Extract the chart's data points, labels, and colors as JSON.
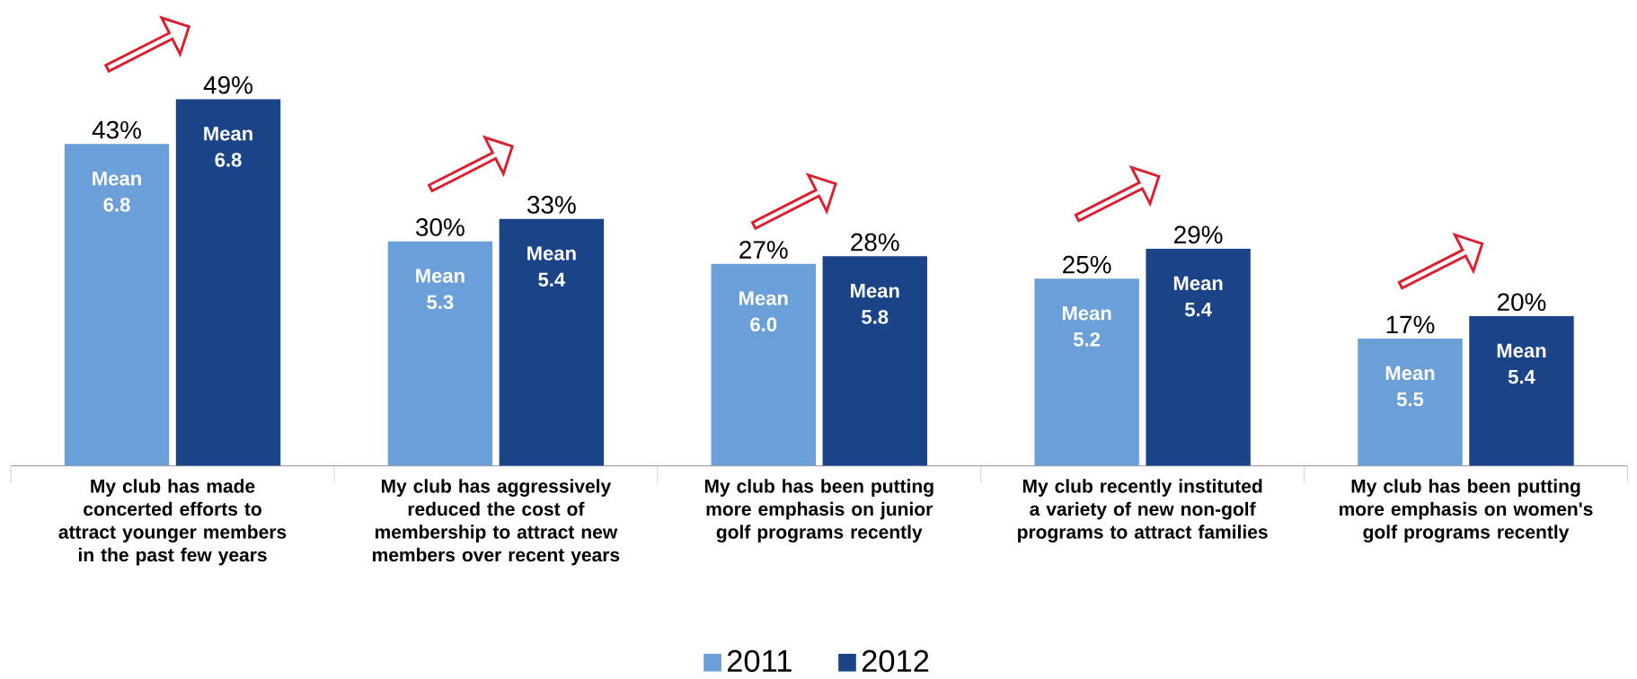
{
  "chart_data": {
    "type": "bar",
    "categories": [
      "My club has made concerted efforts to attract younger members in the past few years",
      "My club has aggressively reduced the cost of membership to attract new members over recent years",
      "My club has been putting more emphasis on junior golf programs recently",
      "My club recently instituted a variety of new non-golf programs to attract families",
      "My club has been putting more emphasis on women's golf programs recently"
    ],
    "series": [
      {
        "name": "2011",
        "color": "#6a9fd8",
        "values": [
          43,
          30,
          27,
          25,
          17
        ],
        "value_labels": [
          "43%",
          "30%",
          "27%",
          "25%",
          "17%"
        ]
      },
      {
        "name": "2012",
        "color": "#1b4488",
        "values": [
          49,
          33,
          28,
          29,
          20
        ],
        "value_labels": [
          "49%",
          "33%",
          "28%",
          "29%",
          "20%"
        ]
      }
    ],
    "ylim": [
      0,
      49
    ],
    "annotations": [
      "Mean 6.8",
      "Mean 6.8",
      "Mean 5.3",
      "Mean 5.4",
      "Mean 6.0",
      "Mean 5.8",
      "Mean 5.2",
      "Mean 5.4",
      "Mean 5.5",
      "Mean 5.4"
    ],
    "legend": "bottom"
  }
}
